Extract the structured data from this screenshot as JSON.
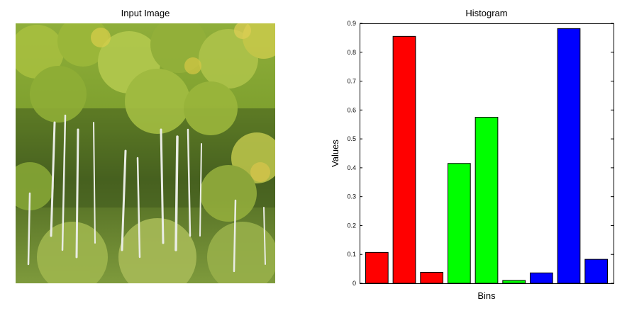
{
  "left_panel": {
    "title": "Input Image"
  },
  "right_panel": {
    "title": "Histogram"
  },
  "chart_data": {
    "type": "bar",
    "title": "Histogram",
    "xlabel": "Bins",
    "ylabel": "Values",
    "ylim": [
      0,
      0.9
    ],
    "yticks": [
      "0",
      "0.1",
      "0.2",
      "0.3",
      "0.4",
      "0.5",
      "0.6",
      "0.7",
      "0.8",
      "0.9"
    ],
    "grid": false,
    "values": [
      0.107,
      0.855,
      0.038,
      0.415,
      0.575,
      0.01,
      0.036,
      0.882,
      0.083
    ],
    "bar_colors": [
      "#ff0000",
      "#ff0000",
      "#ff0000",
      "#00ff00",
      "#00ff00",
      "#00ff00",
      "#0000ff",
      "#0000ff",
      "#0000ff"
    ]
  }
}
